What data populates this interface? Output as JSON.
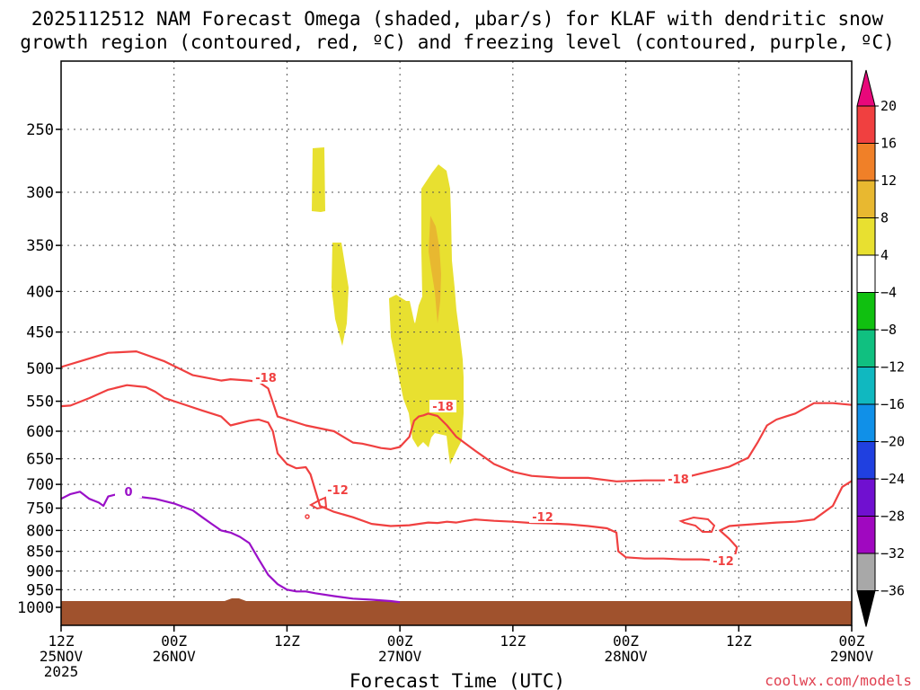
{
  "chart_data": {
    "type": "time-height cross section",
    "title_line1": "2025112512 NAM Forecast Omega (shaded, µbar/s) for KLAF with dendritic snow",
    "title_line2": "growth region (contoured, red, ºC) and freezing level (contoured, purple, ºC)",
    "xlabel": "Forecast Time (UTC)",
    "credit": "coolwx.com/models",
    "x_ticks": [
      {
        "h": 0,
        "l1": "12Z",
        "l2": "25NOV",
        "l3": "2025"
      },
      {
        "h": 12,
        "l1": "00Z",
        "l2": "26NOV",
        "l3": ""
      },
      {
        "h": 24,
        "l1": "12Z",
        "l2": "",
        "l3": ""
      },
      {
        "h": 36,
        "l1": "00Z",
        "l2": "27NOV",
        "l3": ""
      },
      {
        "h": 48,
        "l1": "12Z",
        "l2": "",
        "l3": ""
      },
      {
        "h": 60,
        "l1": "00Z",
        "l2": "28NOV",
        "l3": ""
      },
      {
        "h": 72,
        "l1": "12Z",
        "l2": "",
        "l3": ""
      },
      {
        "h": 84,
        "l1": "00Z",
        "l2": "29NOV",
        "l3": ""
      }
    ],
    "y_ticks": [
      250,
      300,
      350,
      400,
      450,
      500,
      550,
      600,
      650,
      700,
      750,
      800,
      850,
      900,
      950,
      1000
    ],
    "colorbar": {
      "labels": [
        "20",
        "16",
        "12",
        "8",
        "4",
        "−4",
        "−8",
        "−12",
        "−16",
        "−20",
        "−24",
        "−28",
        "−32",
        "−36"
      ],
      "colors": [
        "#e8087a",
        "#f04040",
        "#f08028",
        "#e8b830",
        "#e8e030",
        "#ffffff",
        "#10c010",
        "#10c080",
        "#10b8c0",
        "#1090e8",
        "#2040e0",
        "#7010d0",
        "#a008c0",
        "#a8a8a8",
        "#000000"
      ]
    },
    "contour_labels": [
      {
        "text": "-18",
        "color": "#f04040"
      },
      {
        "text": "-18",
        "color": "#f04040"
      },
      {
        "text": "-18",
        "color": "#f04040"
      },
      {
        "text": "-12",
        "color": "#f04040"
      },
      {
        "text": "-12",
        "color": "#f04040"
      },
      {
        "text": "-12",
        "color": "#f04040"
      },
      {
        "text": "0",
        "color": "#9a10c8"
      }
    ],
    "series": [
      {
        "name": "-18C contour (lower)",
        "hours": [
          0,
          2,
          5,
          8,
          11,
          14,
          17,
          18,
          20,
          21,
          22,
          23,
          26,
          29,
          30,
          31,
          32,
          33,
          34,
          35,
          36,
          37,
          37.5,
          38,
          38.5,
          39,
          40,
          41,
          42,
          44,
          46,
          48,
          50,
          53,
          56,
          59,
          62,
          65,
          68,
          71,
          73,
          74,
          75,
          76,
          77,
          78,
          80,
          82,
          84
        ],
        "pressure": [
          498,
          490,
          478,
          476,
          490,
          510,
          518,
          516,
          518,
          520,
          530,
          575,
          590,
          600,
          610,
          620,
          622,
          626,
          630,
          632,
          628,
          610,
          582,
          575,
          573,
          570,
          574,
          590,
          610,
          635,
          660,
          675,
          683,
          687,
          687,
          694,
          692,
          692,
          678,
          665,
          648,
          620,
          590,
          580,
          575,
          570,
          553,
          553,
          556
        ]
      },
      {
        "name": "-12C contour",
        "hours": [
          0,
          1,
          3,
          5,
          7,
          9,
          10,
          11,
          13,
          15,
          17,
          18,
          20,
          21,
          22,
          22.5,
          23,
          24,
          25,
          26,
          26.5,
          27.5,
          29,
          31,
          33,
          35,
          37,
          38,
          39,
          40,
          41,
          42,
          43,
          44,
          46,
          48,
          50,
          52,
          54,
          56,
          58,
          59,
          59.2,
          60,
          62,
          64,
          66,
          68,
          69,
          70,
          71,
          71.6,
          71.8,
          71,
          70,
          71,
          72,
          74,
          76,
          78,
          80,
          82,
          83,
          84
        ],
        "pressure": [
          558,
          557,
          545,
          532,
          525,
          528,
          535,
          545,
          555,
          565,
          575,
          590,
          582,
          580,
          585,
          600,
          640,
          660,
          668,
          666,
          680,
          745,
          758,
          770,
          785,
          790,
          788,
          785,
          782,
          783,
          780,
          782,
          778,
          775,
          778,
          780,
          783,
          784,
          786,
          790,
          795,
          805,
          850,
          865,
          868,
          868,
          870,
          870,
          872,
          872,
          870,
          860,
          840,
          820,
          800,
          790,
          788,
          785,
          782,
          780,
          775,
          745,
          705,
          693
        ]
      },
      {
        "name": "0C freezing level",
        "hours": [
          0,
          1,
          2,
          3,
          4,
          4.5,
          5,
          6,
          7,
          8,
          10,
          12,
          14,
          15,
          16,
          17,
          18,
          19,
          20,
          21,
          22,
          23,
          24,
          25,
          26,
          27,
          29,
          31,
          33,
          35,
          36
        ],
        "pressure": [
          730,
          720,
          715,
          730,
          738,
          745,
          725,
          720,
          720,
          725,
          730,
          740,
          755,
          770,
          785,
          800,
          805,
          815,
          830,
          870,
          910,
          935,
          950,
          955,
          955,
          960,
          968,
          975,
          978,
          982,
          985
        ]
      }
    ],
    "omega_regions": [
      {
        "name": "omega +4 region A",
        "value": 4
      },
      {
        "name": "omega +4 region B",
        "value": 4
      },
      {
        "name": "omega +4 main plume",
        "value": 4
      },
      {
        "name": "omega +8 core",
        "value": 8
      }
    ]
  }
}
